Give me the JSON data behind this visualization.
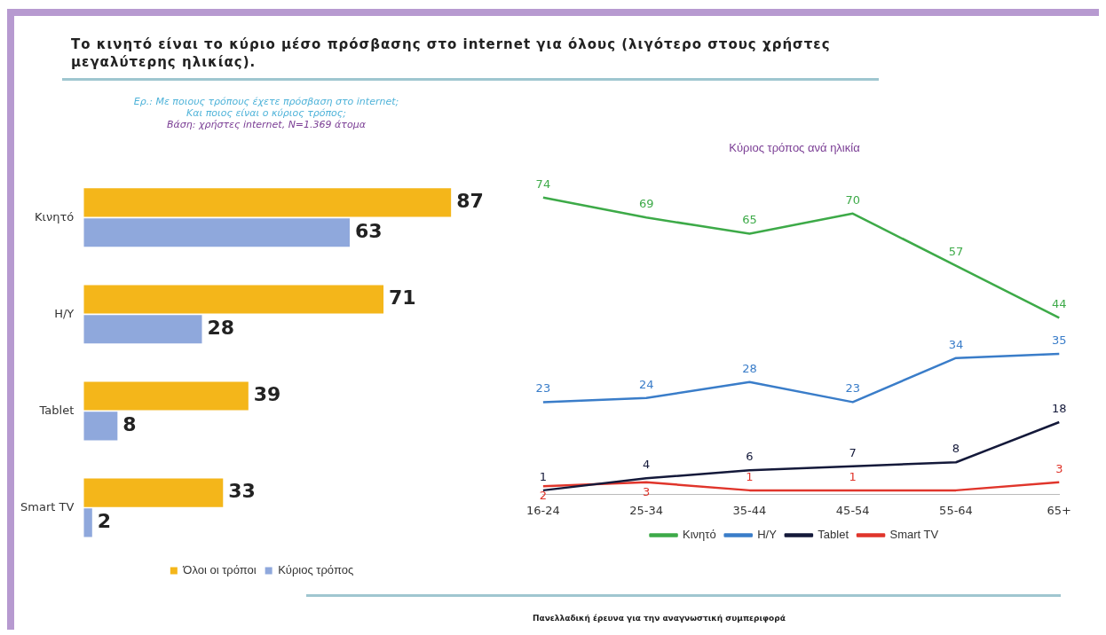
{
  "chart_data": [
    {
      "type": "bar",
      "orientation": "horizontal",
      "title": "Το κινητό είναι το κύριο μέσο πρόσβασης στο internet για όλους (λιγότερο στους χρήστες μεγαλύτερης ηλικίας).",
      "subtitle": "Ερ.: Με ποιους τρόπους έχετε πρόσβαση στο internet;\nΚαι ποιος είναι ο κύριος τρόπος;\nΒάση: χρήστες internet, N=1.369 άτομα",
      "categories": [
        "Κινητό",
        "Η/Υ",
        "Tablet",
        "Smart TV"
      ],
      "series": [
        {
          "name": "Όλοι οι τρόποι",
          "color": "#f4b61a",
          "values": [
            87,
            71,
            39,
            33
          ]
        },
        {
          "name": "Κύριος τρόπος",
          "color": "#8fa8dc",
          "values": [
            63,
            28,
            8,
            2
          ]
        }
      ],
      "data_labels": true,
      "legend": "bottom",
      "annotations": [
        "Πανελλαδική έρευνα για την αναγνωστική συμπεριφορά"
      ]
    },
    {
      "type": "line",
      "title": "Κύριος τρόπος ανά ηλικία",
      "categories": [
        "16-24",
        "25-34",
        "35-44",
        "45-54",
        "55-64",
        "65+"
      ],
      "series": [
        {
          "name": "Κινητό",
          "color": "#3daa48",
          "values": [
            74,
            69,
            65,
            70,
            57,
            44
          ]
        },
        {
          "name": "Η/Υ",
          "color": "#3a7dc9",
          "values": [
            23,
            24,
            28,
            23,
            34,
            35
          ]
        },
        {
          "name": "Tablet",
          "color": "#14193a",
          "values": [
            1,
            4,
            6,
            7,
            8,
            18
          ]
        },
        {
          "name": "Smart TV",
          "color": "#e0352b",
          "values": [
            2,
            3,
            1,
            1,
            1,
            3
          ],
          "value_labels": [
            "2",
            "3",
            "1",
            "1",
            null,
            "3"
          ]
        }
      ],
      "data_labels": true,
      "legend": "bottom",
      "marker": "none"
    }
  ]
}
